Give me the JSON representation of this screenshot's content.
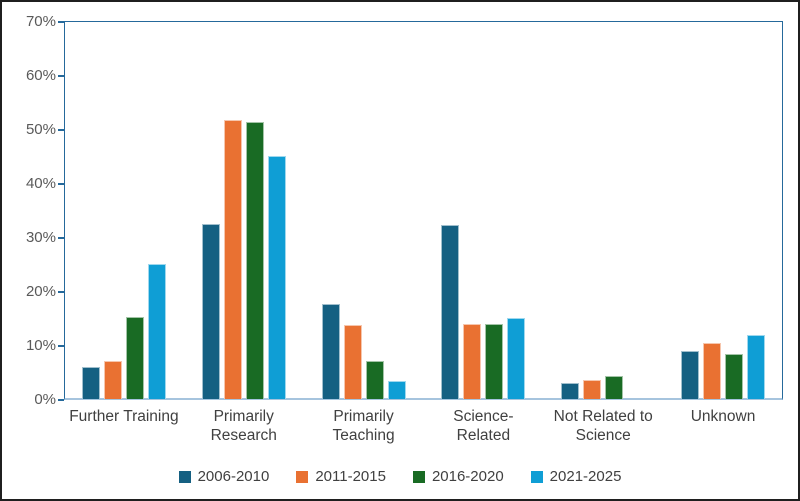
{
  "chart_data": {
    "type": "bar",
    "title": "",
    "categories": [
      "Further Training",
      "Primarily Research",
      "Primarily Teaching",
      "Science-Related",
      "Not Related to Science",
      "Unknown"
    ],
    "series": [
      {
        "name": "2006-2010",
        "color": "#156082",
        "values": [
          6.0,
          32.5,
          17.7,
          32.4,
          3.0,
          8.9
        ]
      },
      {
        "name": "2011-2015",
        "color": "#E97132",
        "values": [
          7.0,
          51.8,
          13.8,
          13.9,
          3.5,
          10.4
        ]
      },
      {
        "name": "2016-2020",
        "color": "#196B24",
        "values": [
          15.3,
          51.5,
          7.0,
          14.0,
          4.2,
          8.4
        ]
      },
      {
        "name": "2021-2025",
        "color": "#0F9ED5",
        "values": [
          25.0,
          45.1,
          3.4,
          15.1,
          0.0,
          11.8
        ]
      }
    ],
    "ylim": [
      0,
      70
    ],
    "y_ticks": [
      "0%",
      "10%",
      "20%",
      "30%",
      "40%",
      "50%",
      "60%",
      "70%"
    ],
    "grid": false,
    "legend_position": "bottom",
    "xlabel": "",
    "ylabel": ""
  },
  "colors": {
    "axis_frame": "#25699b",
    "axis_bottom_line": "#a6c4de",
    "tick_label": "#595959",
    "category_label": "#404040",
    "legend_label": "#404040",
    "background": "#ffffff",
    "page_border": "#1f1f1f"
  }
}
